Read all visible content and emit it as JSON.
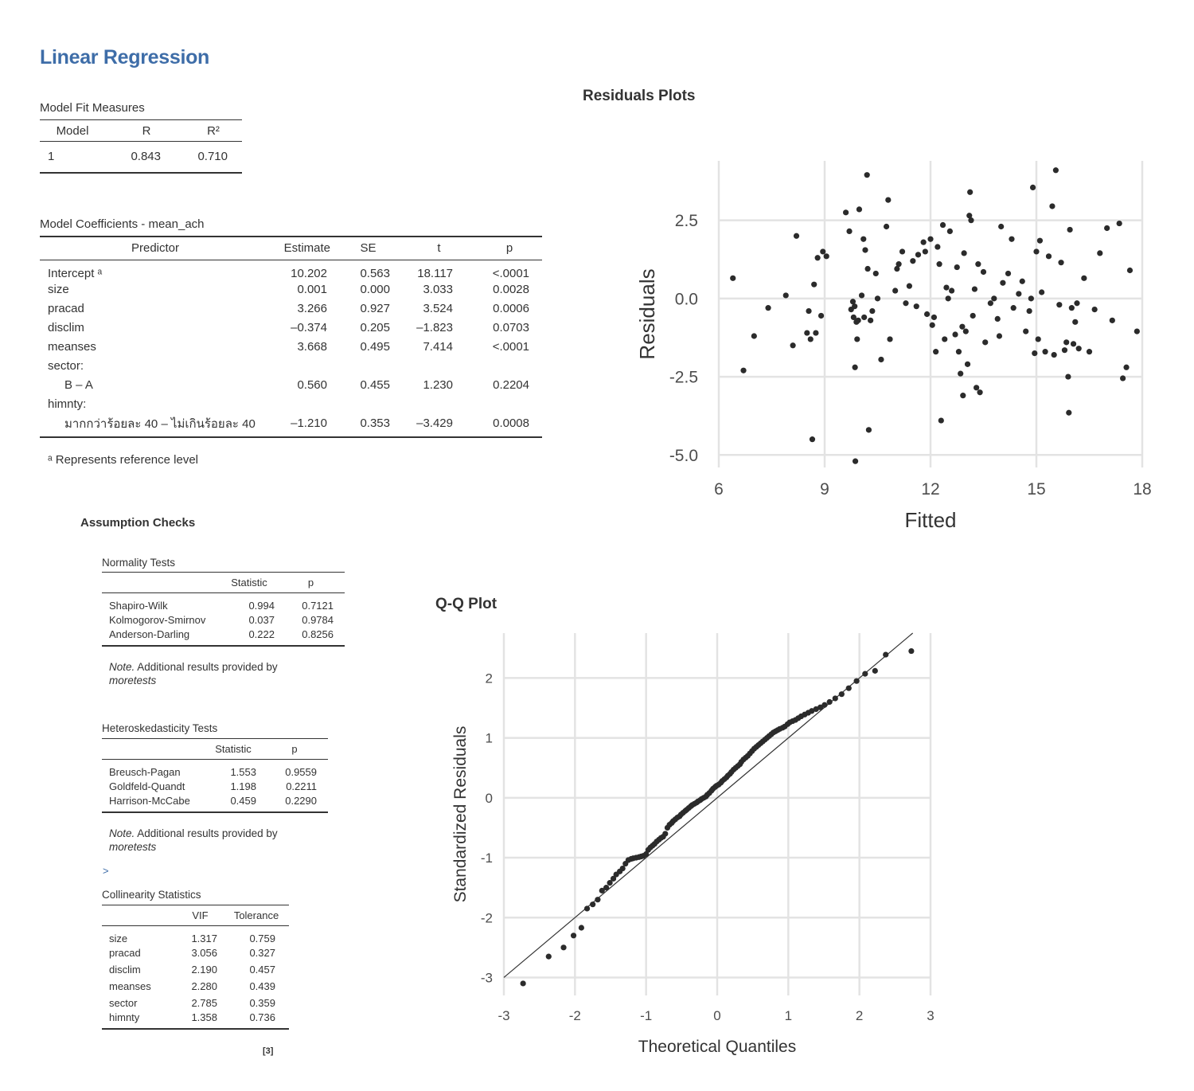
{
  "title": "Linear Regression",
  "model_fit": {
    "caption": "Model Fit Measures",
    "headers": [
      "Model",
      "R",
      "R²"
    ],
    "rows": [
      [
        "1",
        "0.843",
        "0.710"
      ]
    ]
  },
  "coefficients": {
    "caption": "Model Coefficients - mean_ach",
    "headers": [
      "Predictor",
      "Estimate",
      "SE",
      "t",
      "p"
    ],
    "rows": [
      {
        "label": "Intercept ᵃ",
        "estimate": "10.202",
        "se": "0.563",
        "t": "18.117",
        "p": "<.0001"
      },
      {
        "label": "size",
        "estimate": "0.001",
        "se": "0.000",
        "t": "3.033",
        "p": "0.0028"
      },
      {
        "label": "pracad",
        "estimate": "3.266",
        "se": "0.927",
        "t": "3.524",
        "p": "0.0006"
      },
      {
        "label": "disclim",
        "estimate": "–0.374",
        "se": "0.205",
        "t": "–1.823",
        "p": "0.0703"
      },
      {
        "label": "meanses",
        "estimate": "3.668",
        "se": "0.495",
        "t": "7.414",
        "p": "<.0001"
      },
      {
        "label": "sector:",
        "estimate": "",
        "se": "",
        "t": "",
        "p": ""
      },
      {
        "label": "B – A",
        "indent": true,
        "estimate": "0.560",
        "se": "0.455",
        "t": "1.230",
        "p": "0.2204"
      },
      {
        "label": "himnty:",
        "estimate": "",
        "se": "",
        "t": "",
        "p": ""
      },
      {
        "label": "มากกว่าร้อยละ 40 – ไม่เกินร้อยละ 40",
        "indent": true,
        "estimate": "–1.210",
        "se": "0.353",
        "t": "–3.429",
        "p": "0.0008"
      }
    ],
    "footnote": "ᵃ Represents reference level"
  },
  "assumption_checks": {
    "heading": "Assumption Checks",
    "normality": {
      "caption": "Normality Tests",
      "headers": [
        "",
        "Statistic",
        "p"
      ],
      "rows": [
        [
          "Shapiro-Wilk",
          "0.994",
          "0.7121"
        ],
        [
          "Kolmogorov-Smirnov",
          "0.037",
          "0.9784"
        ],
        [
          "Anderson-Darling",
          "0.222",
          "0.8256"
        ]
      ],
      "note_label": "Note.",
      "note_text": " Additional results provided by",
      "note_pkg": "moretests"
    },
    "heteroskedasticity": {
      "caption": "Heteroskedasticity Tests",
      "headers": [
        "",
        "Statistic",
        "p"
      ],
      "rows": [
        [
          "Breusch-Pagan",
          "1.553",
          "0.9559"
        ],
        [
          "Goldfeld-Quandt",
          "1.198",
          "0.2211"
        ],
        [
          "Harrison-McCabe",
          "0.459",
          "0.2290"
        ]
      ],
      "note_label": "Note.",
      "note_text": " Additional results provided by",
      "note_pkg": "moretests"
    },
    "prompt_glyph": ">",
    "collinearity": {
      "caption": "Collinearity Statistics",
      "headers": [
        "",
        "VIF",
        "Tolerance"
      ],
      "rows": [
        [
          "size",
          "1.317",
          "0.759"
        ],
        [
          "pracad",
          "3.056",
          "0.327"
        ],
        [
          "disclim",
          "2.190",
          "0.457"
        ],
        [
          "meanses",
          "2.280",
          "0.439"
        ],
        [
          "sector",
          "2.785",
          "0.359"
        ],
        [
          "himnty",
          "1.358",
          "0.736"
        ]
      ],
      "ref": "[3]"
    }
  },
  "chart_data": [
    {
      "type": "scatter",
      "title": "Residuals Plots",
      "xlabel": "Fitted",
      "ylabel": "Residuals",
      "xlim": [
        6,
        18
      ],
      "ylim": [
        -5.4,
        4.4
      ],
      "xticks": [
        6,
        9,
        12,
        15,
        18
      ],
      "xtick_labels": [
        "6",
        "9",
        "12",
        "15",
        "18"
      ],
      "yticks": [
        -5,
        -2.5,
        0,
        2.5
      ],
      "ytick_labels": [
        "-5.0",
        "-2.5",
        "0.0",
        "2.5"
      ],
      "grid": true,
      "points": [
        [
          6.4,
          0.65
        ],
        [
          6.7,
          -2.3
        ],
        [
          7.0,
          -1.2
        ],
        [
          7.4,
          -0.3
        ],
        [
          7.9,
          0.1
        ],
        [
          8.1,
          -1.5
        ],
        [
          8.2,
          2.0
        ],
        [
          8.5,
          -1.1
        ],
        [
          8.55,
          -0.4
        ],
        [
          8.6,
          -1.3
        ],
        [
          8.65,
          -4.5
        ],
        [
          8.7,
          0.45
        ],
        [
          8.75,
          -1.1
        ],
        [
          8.8,
          1.3
        ],
        [
          8.9,
          -0.55
        ],
        [
          8.95,
          1.5
        ],
        [
          9.05,
          1.35
        ],
        [
          9.6,
          2.75
        ],
        [
          9.7,
          2.15
        ],
        [
          9.75,
          -0.35
        ],
        [
          9.8,
          -0.1
        ],
        [
          9.82,
          -0.6
        ],
        [
          9.85,
          -0.25
        ],
        [
          9.86,
          -2.2
        ],
        [
          9.87,
          -5.2
        ],
        [
          9.9,
          -0.75
        ],
        [
          9.92,
          -1.3
        ],
        [
          9.95,
          -0.7
        ],
        [
          9.98,
          2.85
        ],
        [
          10.05,
          0.1
        ],
        [
          10.1,
          1.9
        ],
        [
          10.12,
          -0.6
        ],
        [
          10.15,
          1.55
        ],
        [
          10.2,
          3.95
        ],
        [
          10.22,
          0.95
        ],
        [
          10.25,
          -4.2
        ],
        [
          10.3,
          -0.7
        ],
        [
          10.35,
          -0.4
        ],
        [
          10.45,
          0.8
        ],
        [
          10.5,
          0.0
        ],
        [
          10.6,
          -1.95
        ],
        [
          10.75,
          2.3
        ],
        [
          10.8,
          3.15
        ],
        [
          10.85,
          -1.3
        ],
        [
          11.0,
          0.25
        ],
        [
          11.05,
          0.95
        ],
        [
          11.1,
          1.1
        ],
        [
          11.2,
          1.5
        ],
        [
          11.3,
          -0.15
        ],
        [
          11.4,
          0.4
        ],
        [
          11.5,
          1.2
        ],
        [
          11.6,
          -0.25
        ],
        [
          11.65,
          1.4
        ],
        [
          11.8,
          1.8
        ],
        [
          11.85,
          1.5
        ],
        [
          11.9,
          -0.5
        ],
        [
          12.0,
          1.9
        ],
        [
          12.05,
          -0.85
        ],
        [
          12.1,
          -0.6
        ],
        [
          12.15,
          -1.7
        ],
        [
          12.2,
          1.65
        ],
        [
          12.25,
          1.1
        ],
        [
          12.3,
          -3.9
        ],
        [
          12.35,
          2.35
        ],
        [
          12.4,
          -1.3
        ],
        [
          12.45,
          0.35
        ],
        [
          12.5,
          0.0
        ],
        [
          12.55,
          2.15
        ],
        [
          12.6,
          0.25
        ],
        [
          12.7,
          -1.15
        ],
        [
          12.75,
          1.0
        ],
        [
          12.8,
          -1.7
        ],
        [
          12.85,
          -2.4
        ],
        [
          12.9,
          -0.9
        ],
        [
          12.92,
          -3.1
        ],
        [
          12.95,
          1.45
        ],
        [
          13.0,
          -1.05
        ],
        [
          13.05,
          -2.1
        ],
        [
          13.1,
          2.65
        ],
        [
          13.12,
          3.4
        ],
        [
          13.15,
          2.5
        ],
        [
          13.2,
          -0.55
        ],
        [
          13.25,
          0.3
        ],
        [
          13.3,
          -2.85
        ],
        [
          13.35,
          1.1
        ],
        [
          13.4,
          -3.0
        ],
        [
          13.5,
          0.85
        ],
        [
          13.55,
          -1.4
        ],
        [
          13.7,
          -0.15
        ],
        [
          13.8,
          0.0
        ],
        [
          13.9,
          -0.65
        ],
        [
          13.95,
          -1.2
        ],
        [
          14.0,
          2.3
        ],
        [
          14.05,
          0.5
        ],
        [
          14.2,
          0.8
        ],
        [
          14.3,
          1.9
        ],
        [
          14.35,
          -0.3
        ],
        [
          14.5,
          0.15
        ],
        [
          14.6,
          0.55
        ],
        [
          14.7,
          -1.05
        ],
        [
          14.8,
          -0.4
        ],
        [
          14.85,
          0.0
        ],
        [
          14.9,
          3.55
        ],
        [
          14.95,
          -1.75
        ],
        [
          15.0,
          1.5
        ],
        [
          15.05,
          -1.3
        ],
        [
          15.1,
          1.85
        ],
        [
          15.15,
          0.2
        ],
        [
          15.25,
          -1.7
        ],
        [
          15.35,
          1.35
        ],
        [
          15.45,
          2.95
        ],
        [
          15.5,
          -1.8
        ],
        [
          15.55,
          4.1
        ],
        [
          15.65,
          -0.2
        ],
        [
          15.7,
          1.15
        ],
        [
          15.8,
          -1.65
        ],
        [
          15.85,
          -1.4
        ],
        [
          15.9,
          -2.5
        ],
        [
          15.92,
          -3.65
        ],
        [
          15.95,
          2.2
        ],
        [
          16.0,
          -0.3
        ],
        [
          16.05,
          -1.45
        ],
        [
          16.1,
          -0.75
        ],
        [
          16.15,
          -0.15
        ],
        [
          16.2,
          -1.6
        ],
        [
          16.35,
          0.65
        ],
        [
          16.5,
          -1.7
        ],
        [
          16.65,
          -0.35
        ],
        [
          16.8,
          1.45
        ],
        [
          17.0,
          2.25
        ],
        [
          17.15,
          -0.7
        ],
        [
          17.35,
          2.4
        ],
        [
          17.45,
          -2.55
        ],
        [
          17.55,
          -2.2
        ],
        [
          17.65,
          0.9
        ],
        [
          17.85,
          -1.05
        ]
      ]
    },
    {
      "type": "scatter",
      "title": "Q-Q Plot",
      "xlabel": "Theoretical Quantiles",
      "ylabel": "Standardized Residuals",
      "xlim": [
        -3,
        3
      ],
      "ylim": [
        -3.3,
        2.75
      ],
      "xticks": [
        -3,
        -2,
        -1,
        0,
        1,
        2,
        3
      ],
      "yticks": [
        -3,
        -2,
        -1,
        0,
        1,
        2
      ],
      "grid": true,
      "reference_line": {
        "slope": 1,
        "intercept": 0
      },
      "points": [
        [
          -2.73,
          -3.1
        ],
        [
          -2.37,
          -2.65
        ],
        [
          -2.16,
          -2.5
        ],
        [
          -2.02,
          -2.3
        ],
        [
          -1.91,
          -2.17
        ],
        [
          -1.83,
          -1.85
        ],
        [
          -1.75,
          -1.78
        ],
        [
          -1.68,
          -1.7
        ],
        [
          -1.62,
          -1.55
        ],
        [
          -1.56,
          -1.5
        ],
        [
          -1.51,
          -1.42
        ],
        [
          -1.46,
          -1.35
        ],
        [
          -1.42,
          -1.28
        ],
        [
          -1.37,
          -1.23
        ],
        [
          -1.33,
          -1.18
        ],
        [
          -1.29,
          -1.1
        ],
        [
          -1.25,
          -1.04
        ],
        [
          -1.21,
          -1.02
        ],
        [
          -1.18,
          -1.01
        ],
        [
          -1.14,
          -1.0
        ],
        [
          -1.1,
          -0.99
        ],
        [
          -1.07,
          -0.98
        ],
        [
          -1.04,
          -0.97
        ],
        [
          -1.0,
          -0.94
        ],
        [
          -0.97,
          -0.87
        ],
        [
          -0.94,
          -0.83
        ],
        [
          -0.91,
          -0.8
        ],
        [
          -0.88,
          -0.77
        ],
        [
          -0.85,
          -0.73
        ],
        [
          -0.82,
          -0.7
        ],
        [
          -0.79,
          -0.67
        ],
        [
          -0.76,
          -0.65
        ],
        [
          -0.73,
          -0.6
        ],
        [
          -0.7,
          -0.5
        ],
        [
          -0.67,
          -0.45
        ],
        [
          -0.64,
          -0.42
        ],
        [
          -0.62,
          -0.39
        ],
        [
          -0.59,
          -0.36
        ],
        [
          -0.56,
          -0.33
        ],
        [
          -0.53,
          -0.31
        ],
        [
          -0.51,
          -0.28
        ],
        [
          -0.48,
          -0.25
        ],
        [
          -0.45,
          -0.22
        ],
        [
          -0.43,
          -0.2
        ],
        [
          -0.4,
          -0.17
        ],
        [
          -0.37,
          -0.14
        ],
        [
          -0.35,
          -0.12
        ],
        [
          -0.32,
          -0.1
        ],
        [
          -0.29,
          -0.08
        ],
        [
          -0.27,
          -0.06
        ],
        [
          -0.24,
          -0.04
        ],
        [
          -0.22,
          -0.02
        ],
        [
          -0.19,
          0.0
        ],
        [
          -0.16,
          0.02
        ],
        [
          -0.14,
          0.05
        ],
        [
          -0.11,
          0.08
        ],
        [
          -0.08,
          0.12
        ],
        [
          -0.06,
          0.15
        ],
        [
          -0.03,
          0.18
        ],
        [
          -0.01,
          0.2
        ],
        [
          0.02,
          0.22
        ],
        [
          0.05,
          0.25
        ],
        [
          0.07,
          0.28
        ],
        [
          0.1,
          0.31
        ],
        [
          0.13,
          0.34
        ],
        [
          0.15,
          0.37
        ],
        [
          0.18,
          0.4
        ],
        [
          0.2,
          0.43
        ],
        [
          0.23,
          0.47
        ],
        [
          0.26,
          0.5
        ],
        [
          0.29,
          0.53
        ],
        [
          0.32,
          0.56
        ],
        [
          0.34,
          0.6
        ],
        [
          0.37,
          0.64
        ],
        [
          0.4,
          0.67
        ],
        [
          0.43,
          0.7
        ],
        [
          0.46,
          0.74
        ],
        [
          0.49,
          0.78
        ],
        [
          0.52,
          0.82
        ],
        [
          0.55,
          0.85
        ],
        [
          0.58,
          0.88
        ],
        [
          0.61,
          0.91
        ],
        [
          0.64,
          0.94
        ],
        [
          0.67,
          0.97
        ],
        [
          0.7,
          1.0
        ],
        [
          0.73,
          1.03
        ],
        [
          0.76,
          1.06
        ],
        [
          0.79,
          1.09
        ],
        [
          0.82,
          1.11
        ],
        [
          0.85,
          1.13
        ],
        [
          0.88,
          1.15
        ],
        [
          0.92,
          1.17
        ],
        [
          0.95,
          1.19
        ],
        [
          0.99,
          1.23
        ],
        [
          1.02,
          1.26
        ],
        [
          1.06,
          1.28
        ],
        [
          1.1,
          1.3
        ],
        [
          1.14,
          1.33
        ],
        [
          1.18,
          1.36
        ],
        [
          1.23,
          1.39
        ],
        [
          1.28,
          1.42
        ],
        [
          1.33,
          1.45
        ],
        [
          1.39,
          1.48
        ],
        [
          1.45,
          1.51
        ],
        [
          1.51,
          1.55
        ],
        [
          1.58,
          1.6
        ],
        [
          1.66,
          1.66
        ],
        [
          1.75,
          1.73
        ],
        [
          1.85,
          1.83
        ],
        [
          1.96,
          1.95
        ],
        [
          2.08,
          2.07
        ],
        [
          2.22,
          2.12
        ],
        [
          2.37,
          2.39
        ],
        [
          2.73,
          2.45
        ]
      ]
    }
  ]
}
